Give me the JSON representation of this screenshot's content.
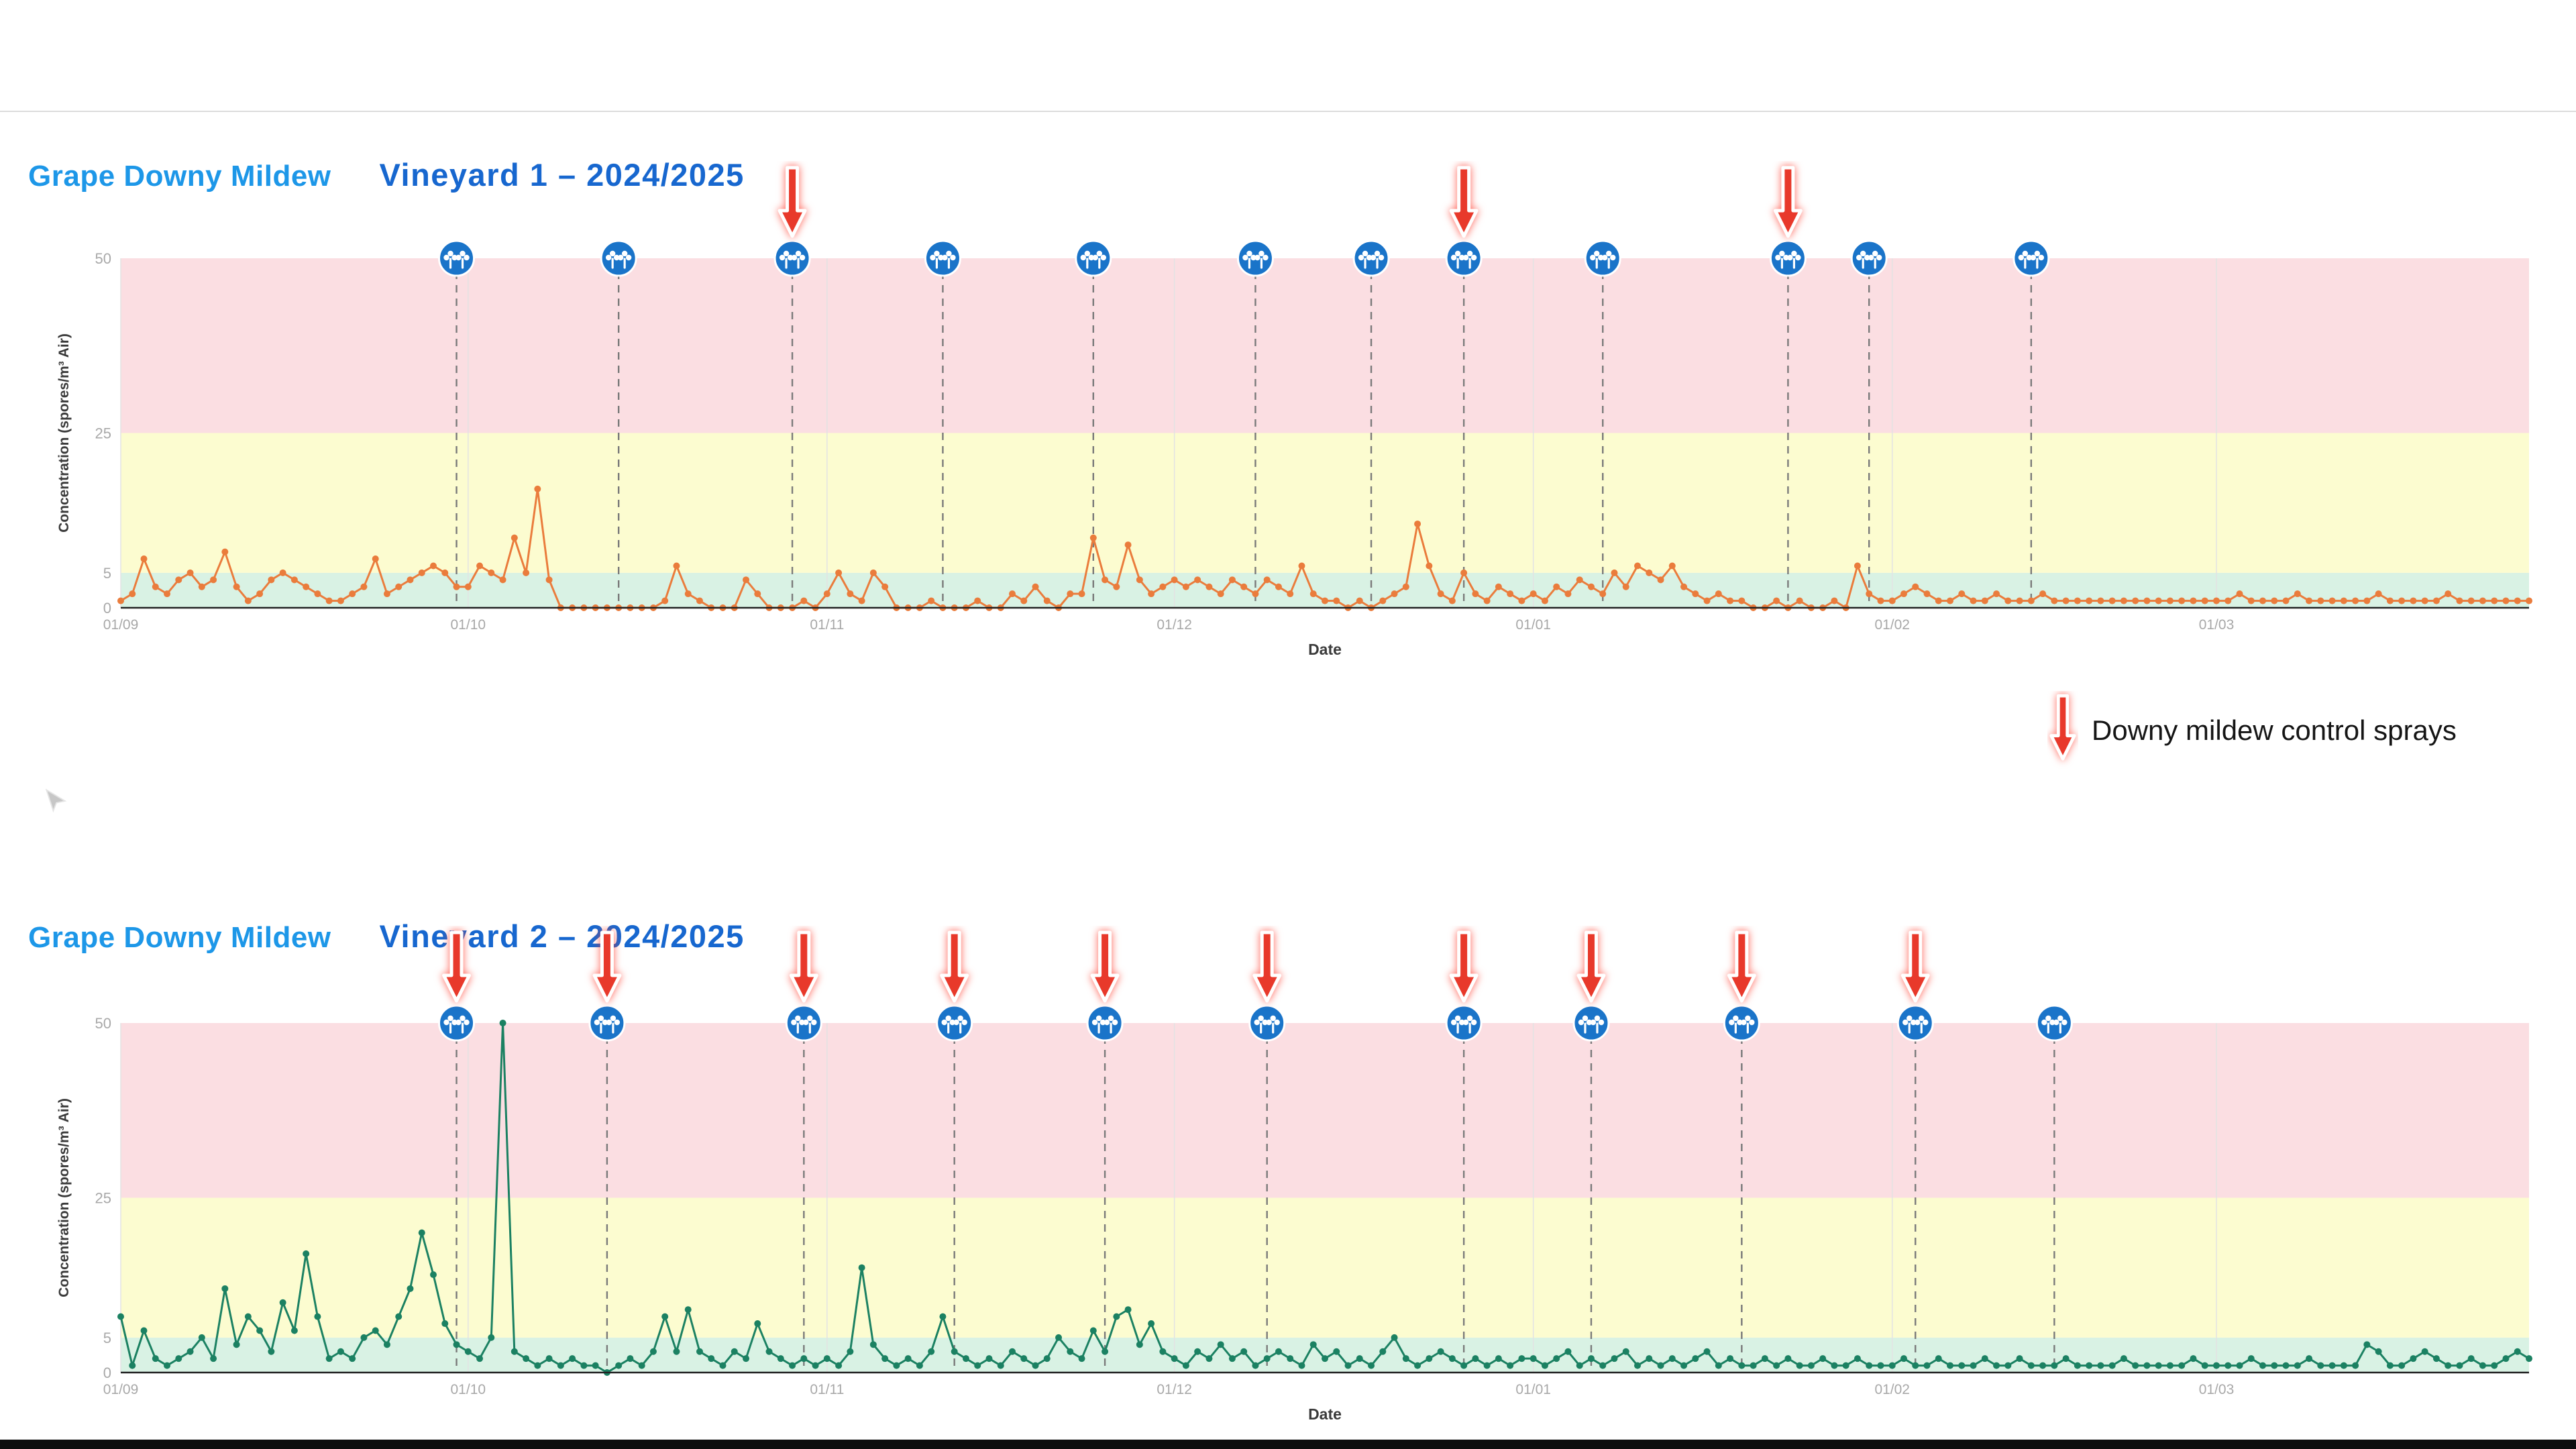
{
  "page": {
    "background": "#ffffff"
  },
  "titles": [
    {
      "series_title": "Grape Downy Mildew",
      "subtitle": "Vineyard 1  – 2024/2025"
    },
    {
      "series_title": "Grape Downy Mildew",
      "subtitle": "Vineyard 2  – 2024/2025"
    }
  ],
  "legend": {
    "label": "Downy mildew control sprays",
    "arrow_color": "#e8392b"
  },
  "chart_data": [
    {
      "type": "line",
      "title": "Grape Downy Mildew Vineyard 1 – 2024/2025",
      "xlabel": "Date",
      "ylabel": "Concentration (spores/m³ Air)",
      "ylim": [
        0,
        50
      ],
      "yticks": [
        0,
        5,
        25,
        50
      ],
      "xticks": [
        {
          "label": "01/09",
          "day": 0
        },
        {
          "label": "01/10",
          "day": 30
        },
        {
          "label": "01/11",
          "day": 61
        },
        {
          "label": "01/12",
          "day": 91
        },
        {
          "label": "01/01",
          "day": 122
        },
        {
          "label": "01/02",
          "day": 153
        },
        {
          "label": "01/03",
          "day": 181
        }
      ],
      "bands": [
        {
          "from": 0,
          "to": 5,
          "color": "#d9f2e4",
          "meaning": "low"
        },
        {
          "from": 5,
          "to": 25,
          "color": "#fcfcd0",
          "meaning": "medium"
        },
        {
          "from": 25,
          "to": 50,
          "color": "#fbdee2",
          "meaning": "high"
        }
      ],
      "line_color": "#ea7c3c",
      "values": [
        1,
        2,
        7,
        3,
        2,
        4,
        5,
        3,
        4,
        8,
        3,
        1,
        2,
        4,
        5,
        4,
        3,
        2,
        1,
        1,
        2,
        3,
        7,
        2,
        3,
        4,
        5,
        6,
        5,
        3,
        3,
        6,
        5,
        4,
        10,
        5,
        17,
        4,
        0,
        0,
        0,
        0,
        0,
        0,
        0,
        0,
        0,
        1,
        6,
        2,
        1,
        0,
        0,
        0,
        4,
        2,
        0,
        0,
        0,
        1,
        0,
        2,
        5,
        2,
        1,
        5,
        3,
        0,
        0,
        0,
        1,
        0,
        0,
        0,
        1,
        0,
        0,
        2,
        1,
        3,
        1,
        0,
        2,
        2,
        10,
        4,
        3,
        9,
        4,
        2,
        3,
        4,
        3,
        4,
        3,
        2,
        4,
        3,
        2,
        4,
        3,
        2,
        6,
        2,
        1,
        1,
        0,
        1,
        0,
        1,
        2,
        3,
        12,
        6,
        2,
        1,
        5,
        2,
        1,
        3,
        2,
        1,
        2,
        1,
        3,
        2,
        4,
        3,
        2,
        5,
        3,
        6,
        5,
        4,
        6,
        3,
        2,
        1,
        2,
        1,
        1,
        0,
        0,
        1,
        0,
        1,
        0,
        0,
        1,
        0,
        6,
        2,
        1,
        1,
        2,
        3,
        2,
        1,
        1,
        2,
        1,
        1,
        2,
        1,
        1,
        1,
        2,
        1,
        1,
        1,
        1,
        1,
        1,
        1,
        1,
        1,
        1,
        1,
        1,
        1,
        1,
        1,
        1,
        2,
        1,
        1,
        1,
        1,
        2,
        1,
        1,
        1,
        1,
        1,
        1,
        2,
        1,
        1,
        1,
        1,
        1,
        2,
        1,
        1,
        1,
        1,
        1,
        1,
        1
      ],
      "event_markers": {
        "icon": "vine-icon",
        "color": "#1a74c9",
        "days": [
          29,
          43,
          58,
          71,
          84,
          98,
          108,
          116,
          128,
          144,
          151,
          165
        ]
      },
      "spray_arrows": {
        "color": "#e8392b",
        "days": [
          58,
          116,
          144
        ]
      }
    },
    {
      "type": "line",
      "title": "Grape Downy Mildew Vineyard 2 – 2024/2025",
      "xlabel": "Date",
      "ylabel": "Concentration (spores/m³ Air)",
      "ylim": [
        0,
        50
      ],
      "yticks": [
        0,
        5,
        25,
        50
      ],
      "xticks": [
        {
          "label": "01/09",
          "day": 0
        },
        {
          "label": "01/10",
          "day": 30
        },
        {
          "label": "01/11",
          "day": 61
        },
        {
          "label": "01/12",
          "day": 91
        },
        {
          "label": "01/01",
          "day": 122
        },
        {
          "label": "01/02",
          "day": 153
        },
        {
          "label": "01/03",
          "day": 181
        }
      ],
      "bands": [
        {
          "from": 0,
          "to": 5,
          "color": "#d9f2e4",
          "meaning": "low"
        },
        {
          "from": 5,
          "to": 25,
          "color": "#fcfcd0",
          "meaning": "medium"
        },
        {
          "from": 25,
          "to": 50,
          "color": "#fbdee2",
          "meaning": "high"
        }
      ],
      "line_color": "#1b8162",
      "values": [
        8,
        1,
        6,
        2,
        1,
        2,
        3,
        5,
        2,
        12,
        4,
        8,
        6,
        3,
        10,
        6,
        17,
        8,
        2,
        3,
        2,
        5,
        6,
        4,
        8,
        12,
        20,
        14,
        7,
        4,
        3,
        2,
        5,
        50,
        3,
        2,
        1,
        2,
        1,
        2,
        1,
        1,
        0,
        1,
        2,
        1,
        3,
        8,
        3,
        9,
        3,
        2,
        1,
        3,
        2,
        7,
        3,
        2,
        1,
        2,
        1,
        2,
        1,
        3,
        15,
        4,
        2,
        1,
        2,
        1,
        3,
        8,
        3,
        2,
        1,
        2,
        1,
        3,
        2,
        1,
        2,
        5,
        3,
        2,
        6,
        3,
        8,
        9,
        4,
        7,
        3,
        2,
        1,
        3,
        2,
        4,
        2,
        3,
        1,
        2,
        3,
        2,
        1,
        4,
        2,
        3,
        1,
        2,
        1,
        3,
        5,
        2,
        1,
        2,
        3,
        2,
        1,
        2,
        1,
        2,
        1,
        2,
        2,
        1,
        2,
        3,
        1,
        2,
        1,
        2,
        3,
        1,
        2,
        1,
        2,
        1,
        2,
        3,
        1,
        2,
        1,
        1,
        2,
        1,
        2,
        1,
        1,
        2,
        1,
        1,
        2,
        1,
        1,
        1,
        2,
        1,
        1,
        2,
        1,
        1,
        1,
        2,
        1,
        1,
        2,
        1,
        1,
        1,
        2,
        1,
        1,
        1,
        1,
        2,
        1,
        1,
        1,
        1,
        1,
        2,
        1,
        1,
        1,
        1,
        2,
        1,
        1,
        1,
        1,
        2,
        1,
        1,
        1,
        1,
        4,
        3,
        1,
        1,
        2,
        3,
        2,
        1,
        1,
        2,
        1,
        1,
        2,
        3,
        2
      ],
      "event_markers": {
        "icon": "vine-icon",
        "color": "#1a74c9",
        "days": [
          29,
          42,
          59,
          72,
          85,
          99,
          116,
          127,
          140,
          155,
          167
        ]
      },
      "spray_arrows": {
        "color": "#e8392b",
        "days": [
          29,
          42,
          59,
          72,
          85,
          99,
          116,
          127,
          140,
          155
        ]
      }
    }
  ]
}
